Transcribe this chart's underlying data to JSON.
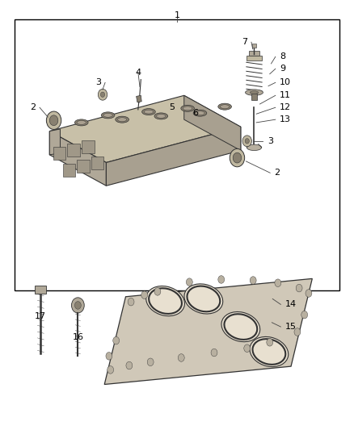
{
  "background_color": "#ffffff",
  "border_color": "#000000",
  "line_color": "#333333",
  "text_color": "#000000",
  "fig_width": 4.38,
  "fig_height": 5.33,
  "dpi": 100,
  "font_size": 8,
  "outline_color": "#333333",
  "head_top_color": "#c8c0a8",
  "head_front_color": "#b0a898",
  "head_right_color": "#a8a090",
  "plug_outer_color": "#c0b8a0",
  "plug_inner_color": "#888070",
  "bore_outer_color": "#888070",
  "bore_inner_color": "#aaa090",
  "gasket_color": "#d0c8b8",
  "gasket_bore_color": "#e8e0d0",
  "bolt_color": "#b0a898",
  "valve_color": "#b0a898",
  "leader_color": "#444444"
}
